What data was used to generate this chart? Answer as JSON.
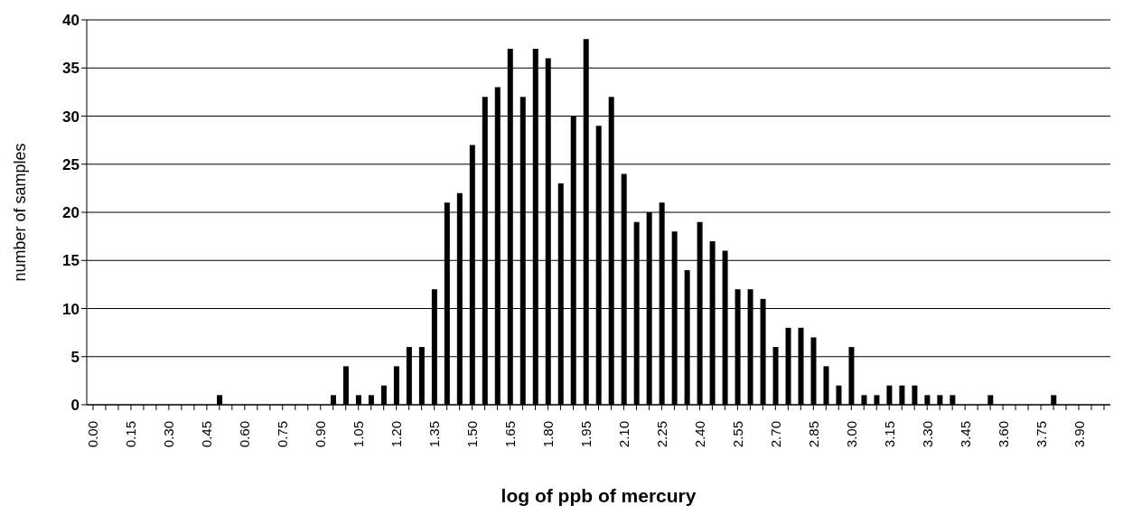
{
  "chart_data": {
    "type": "bar",
    "xlabel": "log of ppb of mercury",
    "ylabel": "number of samples",
    "categories": [
      "0.00",
      null,
      null,
      "0.15",
      null,
      null,
      "0.30",
      null,
      null,
      "0.45",
      null,
      null,
      "0.60",
      null,
      null,
      "0.75",
      null,
      null,
      "0.90",
      null,
      null,
      "1.05",
      null,
      null,
      "1.20",
      null,
      null,
      "1.35",
      null,
      null,
      "1.50",
      null,
      null,
      "1.65",
      null,
      null,
      "1.80",
      null,
      null,
      "1.95",
      null,
      null,
      "2.10",
      null,
      null,
      "2.25",
      null,
      null,
      "2.40",
      null,
      null,
      "2.55",
      null,
      null,
      "2.70",
      null,
      null,
      "2.85",
      null,
      null,
      "3.00",
      null,
      null,
      "3.15",
      null,
      null,
      "3.30",
      null,
      null,
      "3.45",
      null,
      null,
      "3.60",
      null,
      null,
      "3.75",
      null,
      null,
      "3.90",
      null,
      null
    ],
    "values": [
      0,
      0,
      0,
      0,
      0,
      0,
      0,
      0,
      0,
      0,
      1,
      0,
      0,
      0,
      0,
      0,
      0,
      0,
      0,
      1,
      4,
      1,
      1,
      2,
      4,
      6,
      6,
      12,
      21,
      22,
      27,
      32,
      33,
      37,
      32,
      37,
      36,
      23,
      30,
      38,
      29,
      32,
      24,
      19,
      20,
      21,
      18,
      14,
      19,
      17,
      16,
      12,
      12,
      11,
      6,
      8,
      8,
      7,
      4,
      2,
      6,
      1,
      1,
      2,
      2,
      2,
      1,
      1,
      1,
      0,
      0,
      1,
      0,
      0,
      0,
      0,
      1,
      0,
      0,
      0,
      0
    ],
    "color": "#000000",
    "ylim": [
      0,
      40
    ],
    "yticks": [
      0,
      5,
      10,
      15,
      20,
      25,
      30,
      35,
      40
    ],
    "grid": "y"
  }
}
